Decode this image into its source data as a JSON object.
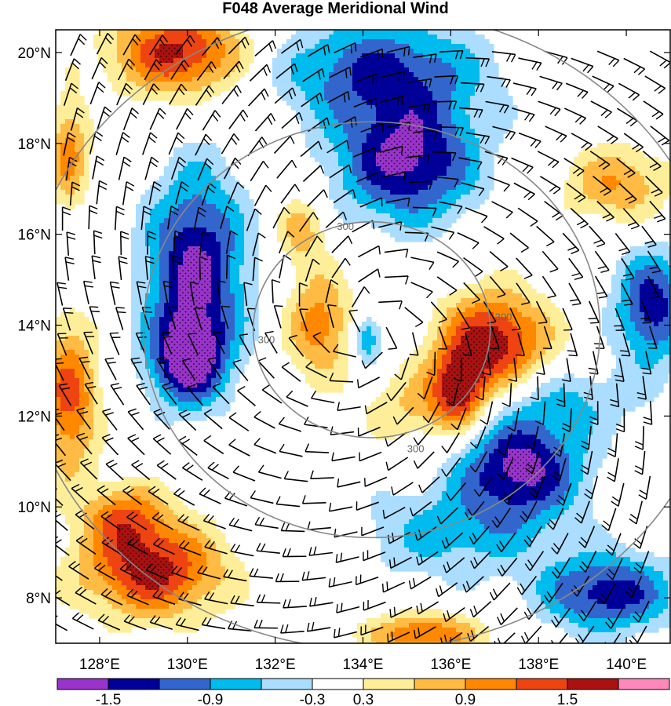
{
  "title": "F048 Average Meridional Wind",
  "map": {
    "lon_range": [
      127.0,
      141.0
    ],
    "lat_range": [
      7.0,
      20.5
    ],
    "lat_ticks": [
      {
        "value": 8,
        "label": "8°N"
      },
      {
        "value": 10,
        "label": "10°N"
      },
      {
        "value": 12,
        "label": "12°N"
      },
      {
        "value": 14,
        "label": "14°N"
      },
      {
        "value": 16,
        "label": "16°N"
      },
      {
        "value": 18,
        "label": "18°N"
      },
      {
        "value": 20,
        "label": "20°N"
      }
    ],
    "lon_ticks": [
      {
        "value": 128,
        "label": "128°E"
      },
      {
        "value": 130,
        "label": "130°E"
      },
      {
        "value": 132,
        "label": "132°E"
      },
      {
        "value": 134,
        "label": "134°E"
      },
      {
        "value": 136,
        "label": "136°E"
      },
      {
        "value": 138,
        "label": "138°E"
      },
      {
        "value": 140,
        "label": "140°E"
      }
    ],
    "range_circles": [
      {
        "center": [
          134.2,
          13.9
        ],
        "radius_deg": 2.7,
        "label": "300"
      },
      {
        "center": [
          134.2,
          13.9
        ],
        "radius_deg": 5.2,
        "label": ""
      },
      {
        "center": [
          134.2,
          13.9
        ],
        "radius_deg": 8.0,
        "label": ""
      }
    ],
    "circle_label_positions": [
      [
        131.8,
        13.6
      ],
      [
        133.6,
        16.1
      ],
      [
        135.2,
        11.2
      ],
      [
        137.2,
        14.1
      ]
    ]
  },
  "colorbar": {
    "levels": [
      -1.8,
      -1.5,
      -1.2,
      -0.9,
      -0.6,
      -0.3,
      0.3,
      0.6,
      0.9,
      1.2,
      1.5,
      1.8
    ],
    "colors": [
      "#9933cc",
      "#000099",
      "#3366cc",
      "#00bbee",
      "#aaddff",
      "#ffffff",
      "#ffee99",
      "#ffbb44",
      "#ff8800",
      "#ee4411",
      "#aa1111",
      "#ff88bb"
    ],
    "labels": [
      {
        "after_box": 1,
        "text": "-1.5"
      },
      {
        "after_box": 3,
        "text": "-0.9"
      },
      {
        "after_box": 5,
        "text": "-0.3"
      },
      {
        "after_box": 6,
        "text": "0.3"
      },
      {
        "after_box": 8,
        "text": "0.9"
      },
      {
        "after_box": 10,
        "text": "1.5"
      }
    ]
  },
  "wind_field": {
    "blobs_negative": [
      {
        "center": [
          130.2,
          15.2
        ],
        "rx": 1.2,
        "ry": 2.3,
        "value": -1.6
      },
      {
        "center": [
          130.0,
          13.2
        ],
        "rx": 0.9,
        "ry": 1.0,
        "value": -1.4
      },
      {
        "center": [
          135.0,
          17.6
        ],
        "rx": 1.7,
        "ry": 1.4,
        "value": -1.6
      },
      {
        "center": [
          134.4,
          19.6
        ],
        "rx": 2.5,
        "ry": 1.2,
        "value": -1.2
      },
      {
        "center": [
          137.6,
          10.9
        ],
        "rx": 1.5,
        "ry": 1.2,
        "value": -1.6
      },
      {
        "center": [
          140.6,
          14.4
        ],
        "rx": 0.9,
        "ry": 1.3,
        "value": -1.4
      },
      {
        "center": [
          134.1,
          13.7
        ],
        "rx": 0.35,
        "ry": 0.6,
        "value": -1.0
      },
      {
        "center": [
          139.6,
          8.1
        ],
        "rx": 1.6,
        "ry": 0.9,
        "value": -1.4
      },
      {
        "center": [
          138.5,
          12.4
        ],
        "rx": 2.0,
        "ry": 0.8,
        "value": -0.6
      },
      {
        "center": [
          136.0,
          9.4
        ],
        "rx": 2.4,
        "ry": 1.1,
        "value": -0.7
      }
    ],
    "blobs_positive": [
      {
        "center": [
          129.8,
          20.0
        ],
        "rx": 1.6,
        "ry": 1.0,
        "value": 1.6
      },
      {
        "center": [
          137.0,
          13.6
        ],
        "rx": 1.3,
        "ry": 1.2,
        "value": 1.7
      },
      {
        "center": [
          136.2,
          12.6
        ],
        "rx": 0.6,
        "ry": 0.9,
        "value": 1.3
      },
      {
        "center": [
          129.2,
          8.6
        ],
        "rx": 1.7,
        "ry": 1.1,
        "value": 1.6
      },
      {
        "center": [
          128.6,
          9.8
        ],
        "rx": 1.0,
        "ry": 0.8,
        "value": 1.0
      },
      {
        "center": [
          127.3,
          12.4
        ],
        "rx": 0.7,
        "ry": 1.8,
        "value": 1.3
      },
      {
        "center": [
          127.3,
          17.8
        ],
        "rx": 0.5,
        "ry": 1.3,
        "value": 1.0
      },
      {
        "center": [
          133.0,
          14.0
        ],
        "rx": 0.8,
        "ry": 1.2,
        "value": 1.1
      },
      {
        "center": [
          132.6,
          16.1
        ],
        "rx": 0.6,
        "ry": 0.8,
        "value": 0.8
      },
      {
        "center": [
          139.8,
          17.1
        ],
        "rx": 1.3,
        "ry": 0.9,
        "value": 0.9
      },
      {
        "center": [
          135.4,
          12.2
        ],
        "rx": 1.4,
        "ry": 0.9,
        "value": 0.7
      },
      {
        "center": [
          135.4,
          7.2
        ],
        "rx": 1.4,
        "ry": 0.5,
        "value": 1.2
      }
    ]
  }
}
